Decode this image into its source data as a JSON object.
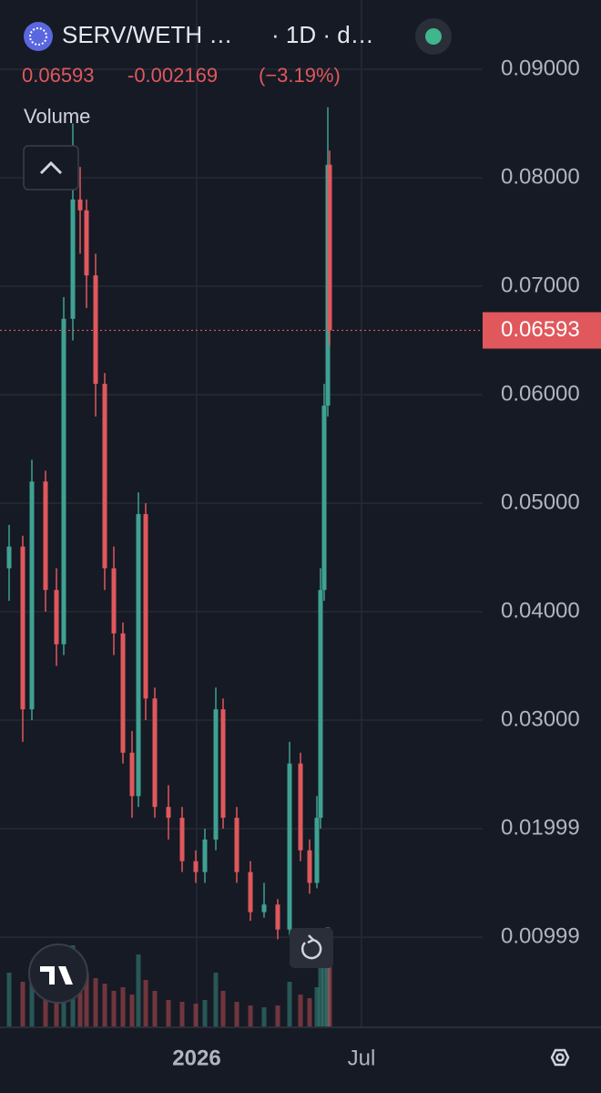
{
  "header": {
    "symbol": "SERV/WETH …",
    "interval": "· 1D · d…",
    "price": "0.06593",
    "change": "-0.002169",
    "change_pct": "(−3.19%)",
    "volume_label": "Volume"
  },
  "chart_data": {
    "type": "candlestick",
    "x": [
      -206,
      -191,
      -181,
      -166,
      -154,
      -146,
      -136,
      -128,
      -121,
      -111,
      -101,
      -91,
      -81,
      -71,
      -64,
      -56,
      -46,
      -31,
      -16,
      -1,
      9,
      21,
      29,
      44,
      59,
      74,
      89,
      102,
      114,
      124,
      132,
      136,
      140,
      144,
      146
    ],
    "open": [
      0.044,
      0.046,
      0.031,
      0.052,
      0.042,
      0.037,
      0.067,
      0.078,
      0.077,
      0.071,
      0.061,
      0.044,
      0.038,
      0.027,
      0.023,
      0.049,
      0.032,
      0.022,
      0.021,
      0.017,
      0.016,
      0.019,
      0.031,
      0.021,
      0.016,
      0.0123,
      0.013,
      0.0107,
      0.026,
      0.018,
      0.015,
      0.021,
      0.042,
      0.059,
      0.0812
    ],
    "high": [
      0.048,
      0.047,
      0.054,
      0.053,
      0.044,
      0.069,
      0.085,
      0.081,
      0.078,
      0.073,
      0.062,
      0.046,
      0.039,
      0.029,
      0.051,
      0.05,
      0.033,
      0.024,
      0.022,
      0.018,
      0.02,
      0.033,
      0.032,
      0.022,
      0.017,
      0.015,
      0.0135,
      0.028,
      0.027,
      0.019,
      0.023,
      0.044,
      0.061,
      0.0865,
      0.0825
    ],
    "low": [
      0.041,
      0.028,
      0.03,
      0.04,
      0.035,
      0.036,
      0.065,
      0.073,
      0.068,
      0.058,
      0.042,
      0.036,
      0.026,
      0.021,
      0.022,
      0.03,
      0.021,
      0.019,
      0.016,
      0.015,
      0.015,
      0.018,
      0.02,
      0.015,
      0.0115,
      0.0118,
      0.0098,
      0.0102,
      0.017,
      0.014,
      0.0145,
      0.02,
      0.041,
      0.058,
      0.0645
    ],
    "close": [
      0.046,
      0.031,
      0.052,
      0.042,
      0.037,
      0.067,
      0.078,
      0.077,
      0.071,
      0.061,
      0.044,
      0.038,
      0.027,
      0.023,
      0.049,
      0.032,
      0.022,
      0.021,
      0.017,
      0.016,
      0.019,
      0.031,
      0.021,
      0.016,
      0.0123,
      0.013,
      0.0107,
      0.026,
      0.018,
      0.015,
      0.021,
      0.042,
      0.059,
      0.0812,
      0.06593
    ],
    "volume": [
      30,
      25,
      35,
      28,
      22,
      40,
      45,
      38,
      30,
      27,
      24,
      20,
      22,
      18,
      40,
      26,
      20,
      15,
      14,
      13,
      15,
      30,
      20,
      14,
      12,
      11,
      12,
      25,
      18,
      16,
      22,
      35,
      45,
      55,
      40
    ],
    "up_color": "#3fa192",
    "down_color": "#e0585c",
    "xlim": [
      -216,
      314
    ],
    "xticks": [
      {
        "value": 0,
        "label": "2026"
      },
      {
        "value": 181,
        "label": "Jul"
      }
    ],
    "ylim": [
      0.00168,
      0.09639
    ],
    "yticks": [
      {
        "value": 0.09,
        "label": "0.09000"
      },
      {
        "value": 0.08,
        "label": "0.08000"
      },
      {
        "value": 0.07,
        "label": "0.07000"
      },
      {
        "value": 0.06,
        "label": "0.06000"
      },
      {
        "value": 0.05,
        "label": "0.05000"
      },
      {
        "value": 0.04,
        "label": "0.04000"
      },
      {
        "value": 0.03,
        "label": "0.03000"
      },
      {
        "value": 0.01999,
        "label": "0.01999"
      },
      {
        "value": 0.00999,
        "label": "0.00999"
      }
    ],
    "price_tag": "0.06593",
    "grid": true
  }
}
